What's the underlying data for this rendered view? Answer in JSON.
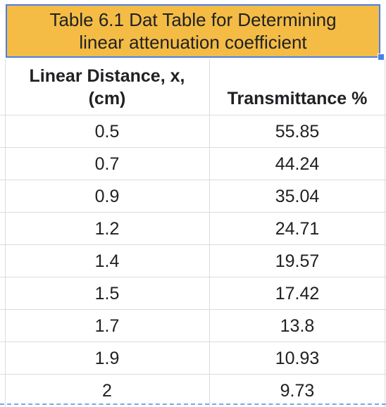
{
  "table": {
    "title_line1": "Table 6.1 Dat Table for Determining",
    "title_line2": "linear attenuation coefficient",
    "header_col1_line1": "Linear Distance, x,",
    "header_col1_line2": "(cm)",
    "header_col2": "Transmittance %",
    "rows": [
      {
        "x": "0.5",
        "t": "55.85"
      },
      {
        "x": "0.7",
        "t": "44.24"
      },
      {
        "x": "0.9",
        "t": "35.04"
      },
      {
        "x": "1.2",
        "t": "24.71"
      },
      {
        "x": "1.4",
        "t": "19.57"
      },
      {
        "x": "1.5",
        "t": "17.42"
      },
      {
        "x": "1.7",
        "t": "13.8"
      },
      {
        "x": "1.9",
        "t": "10.93"
      },
      {
        "x": "2",
        "t": "9.73"
      }
    ]
  },
  "colors": {
    "title_fill": "#f4bc45",
    "selection": "#4a7fe6",
    "gridline": "#dadce0"
  }
}
